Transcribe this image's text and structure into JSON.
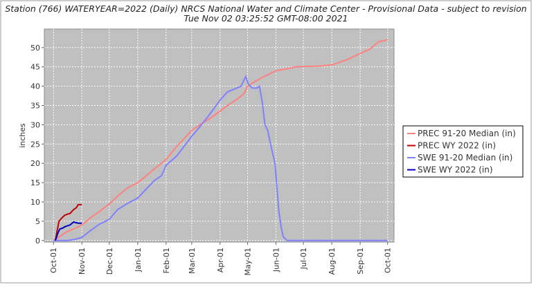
{
  "chart_data": {
    "type": "line",
    "title": "Station (766) WATERYEAR=2022 (Daily) NRCS National Water and Climate Center - Provisional Data - subject to revision",
    "subtitle": "Tue Nov 02 03:25:52 GMT-08:00 2021",
    "y_label": "inches",
    "xlim": [
      -10,
      372
    ],
    "xticks": [
      {
        "value": 0,
        "label": "Oct-01"
      },
      {
        "value": 31,
        "label": "Nov-01"
      },
      {
        "value": 61,
        "label": "Dec-01"
      },
      {
        "value": 92,
        "label": "Jan-01"
      },
      {
        "value": 123,
        "label": "Feb-01"
      },
      {
        "value": 151,
        "label": "Mar-01"
      },
      {
        "value": 182,
        "label": "Apr-01"
      },
      {
        "value": 212,
        "label": "May-01"
      },
      {
        "value": 243,
        "label": "Jun-01"
      },
      {
        "value": 273,
        "label": "Jul-01"
      },
      {
        "value": 304,
        "label": "Aug-01"
      },
      {
        "value": 335,
        "label": "Sep-01"
      },
      {
        "value": 365,
        "label": "Oct-01"
      }
    ],
    "ylim": [
      -0.4,
      54.8
    ],
    "yticks": [
      0,
      5,
      10,
      15,
      20,
      25,
      30,
      35,
      40,
      45,
      50
    ],
    "grid": true,
    "legend": "right",
    "series": [
      {
        "name": "PREC 91-20 Median (in)",
        "color": "#ff8080",
        "x": [
          0,
          8,
          15,
          22,
          31,
          40,
          50,
          61,
          70,
          80,
          92,
          100,
          110,
          123,
          135,
          151,
          160,
          170,
          182,
          190,
          200,
          208,
          212,
          220,
          230,
          243,
          255,
          265,
          273,
          290,
          304,
          320,
          335,
          345,
          355,
          365
        ],
        "values": [
          0,
          1.2,
          2.3,
          3,
          4,
          5.8,
          7.5,
          9.5,
          11.5,
          13.5,
          15,
          16.5,
          18.5,
          21,
          24.5,
          28.5,
          30,
          31.5,
          33.5,
          35,
          36.5,
          38,
          40,
          41.2,
          42.5,
          44,
          44.5,
          45,
          45.1,
          45.2,
          45.5,
          46.8,
          48.5,
          49.5,
          51.5,
          52
        ]
      },
      {
        "name": "PREC WY 2022  (in)",
        "color": "#c00000",
        "x": [
          2,
          4,
          6,
          9,
          12,
          15,
          18,
          22,
          25,
          27,
          31
        ],
        "values": [
          0,
          2.5,
          5,
          5.8,
          6.5,
          6.8,
          7,
          8,
          8.5,
          9.3,
          9.3
        ]
      },
      {
        "name": "SWE 91-20 Median (in)",
        "color": "#8080ff",
        "x": [
          0,
          15,
          23,
          31,
          40,
          50,
          61,
          70,
          80,
          92,
          100,
          110,
          118,
          123,
          135,
          151,
          160,
          170,
          182,
          190,
          200,
          205,
          210,
          213,
          217,
          222,
          225,
          228,
          231,
          234,
          238,
          242,
          246,
          249,
          251,
          255,
          300,
          365
        ],
        "values": [
          0,
          0,
          0.3,
          0.8,
          2.5,
          4.2,
          5.5,
          8,
          9.5,
          11,
          13,
          15.5,
          16.8,
          19.5,
          22,
          27,
          29.5,
          32.5,
          36.4,
          38.5,
          39.5,
          40,
          42.5,
          40.5,
          39.5,
          39.5,
          40,
          36,
          30,
          28.5,
          24,
          20,
          8,
          3,
          1,
          0,
          0,
          0
        ]
      },
      {
        "name": "SWE WY 2022  (in)",
        "color": "#0000c0",
        "x": [
          2,
          5,
          7,
          10,
          12,
          15,
          18,
          22,
          25,
          27,
          31
        ],
        "values": [
          0,
          2,
          3,
          3.2,
          3.5,
          3.8,
          4,
          4.8,
          4.6,
          4.5,
          4.5
        ]
      }
    ]
  }
}
